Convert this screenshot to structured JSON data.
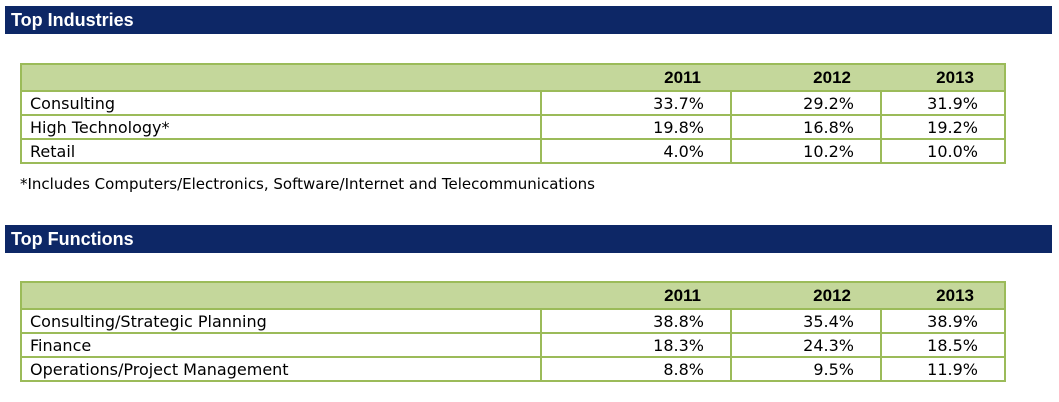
{
  "industries": {
    "title": "Top Industries",
    "years": [
      "2011",
      "2012",
      "2013"
    ],
    "rows": [
      {
        "label": "Consulting",
        "values": [
          "33.7%",
          "29.2%",
          "31.9%"
        ]
      },
      {
        "label": "High Technology*",
        "values": [
          "19.8%",
          "16.8%",
          "19.2%"
        ]
      },
      {
        "label": "Retail",
        "values": [
          "4.0%",
          "10.2%",
          "10.0%"
        ]
      }
    ],
    "footnote": "*Includes Computers/Electronics, Software/Internet and Telecommunications"
  },
  "functions": {
    "title": "Top Functions",
    "years": [
      "2011",
      "2012",
      "2013"
    ],
    "rows": [
      {
        "label": "Consulting/Strategic Planning",
        "values": [
          "38.8%",
          "35.4%",
          "38.9%"
        ]
      },
      {
        "label": "Finance",
        "values": [
          "18.3%",
          "24.3%",
          "18.5%"
        ]
      },
      {
        "label": "Operations/Project Management",
        "values": [
          "8.8%",
          "9.5%",
          "11.9%"
        ]
      }
    ]
  },
  "colors": {
    "banner": "#0d2766",
    "header_fill": "#c4d79b",
    "border": "#9bbb59"
  }
}
